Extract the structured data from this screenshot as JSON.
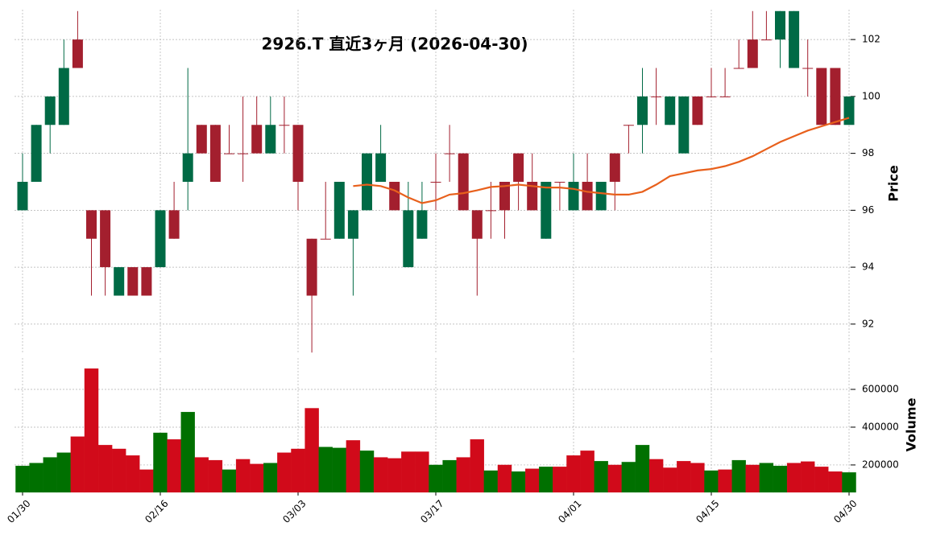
{
  "chart_data": {
    "type": "candlestick",
    "title": "2926.T  直近3ヶ月  (2026-04-30)",
    "categories": [
      "01/30",
      null,
      null,
      null,
      null,
      null,
      null,
      null,
      null,
      null,
      "02/16",
      null,
      null,
      null,
      null,
      null,
      null,
      null,
      null,
      null,
      "03/03",
      null,
      null,
      null,
      null,
      null,
      null,
      null,
      null,
      null,
      "03/17",
      null,
      null,
      null,
      null,
      null,
      null,
      null,
      null,
      null,
      "04/01",
      null,
      null,
      null,
      null,
      null,
      null,
      null,
      null,
      null,
      "04/15",
      null,
      null,
      null,
      null,
      null,
      null,
      null,
      null,
      null,
      "04/30"
    ],
    "open": [
      96,
      97,
      99,
      99,
      102,
      96,
      96,
      93,
      94,
      94,
      94,
      96,
      97,
      99,
      99,
      98,
      98,
      99,
      98,
      99,
      99,
      95,
      95,
      95,
      95,
      96,
      97,
      97,
      94,
      95,
      97,
      98,
      98,
      96,
      96,
      97,
      98,
      97,
      95,
      97,
      96,
      97,
      96,
      98,
      99,
      99,
      100,
      99,
      98,
      100,
      100,
      100,
      101,
      102,
      102,
      102,
      101,
      101,
      101,
      101,
      99
    ],
    "high": [
      98,
      99,
      100,
      102,
      103,
      96,
      96,
      94,
      94,
      94,
      96,
      97,
      101,
      99,
      99,
      99,
      100,
      100,
      100,
      100,
      99,
      95,
      97,
      97,
      96,
      98,
      99,
      97,
      97,
      97,
      98,
      99,
      98,
      96,
      97,
      97,
      98,
      98,
      97,
      97,
      98,
      98,
      97,
      98,
      99,
      101,
      101,
      100,
      100,
      100,
      101,
      101,
      102,
      103,
      103,
      103,
      103,
      102,
      101,
      101,
      100
    ],
    "low": [
      96,
      97,
      98,
      99,
      101,
      93,
      93,
      93,
      93,
      93,
      94,
      95,
      96,
      98,
      97,
      98,
      97,
      98,
      98,
      98,
      96,
      91,
      95,
      95,
      93,
      96,
      97,
      96,
      94,
      95,
      96,
      97,
      96,
      93,
      95,
      95,
      96,
      96,
      95,
      96,
      96,
      96,
      96,
      96,
      98,
      98,
      99,
      99,
      98,
      99,
      100,
      100,
      101,
      101,
      102,
      101,
      101,
      100,
      99,
      99,
      99
    ],
    "close": [
      97,
      99,
      100,
      101,
      101,
      95,
      94,
      94,
      93,
      93,
      96,
      95,
      98,
      98,
      97,
      98,
      98,
      98,
      99,
      99,
      97,
      93,
      95,
      97,
      96,
      98,
      98,
      96,
      96,
      96,
      97,
      98,
      96,
      95,
      96,
      96,
      97,
      96,
      97,
      97,
      97,
      96,
      97,
      97,
      99,
      100,
      100,
      100,
      100,
      99,
      100,
      100,
      101,
      101,
      102,
      103,
      103,
      101,
      99,
      99,
      100
    ],
    "volume": [
      195000,
      210000,
      240000,
      265000,
      350000,
      710000,
      305000,
      285000,
      250000,
      175000,
      370000,
      335000,
      480000,
      240000,
      225000,
      175000,
      230000,
      205000,
      210000,
      265000,
      285000,
      500000,
      295000,
      290000,
      330000,
      275000,
      240000,
      235000,
      270000,
      270000,
      200000,
      225000,
      240000,
      335000,
      170000,
      200000,
      165000,
      180000,
      190000,
      190000,
      250000,
      275000,
      220000,
      200000,
      215000,
      305000,
      230000,
      185000,
      220000,
      210000,
      170000,
      175000,
      225000,
      200000,
      210000,
      195000,
      210000,
      218000,
      190000,
      165000,
      160000
    ],
    "moving_average": {
      "color": "#e8601c",
      "values": [
        null,
        null,
        null,
        null,
        null,
        null,
        null,
        null,
        null,
        null,
        null,
        null,
        null,
        null,
        null,
        null,
        null,
        null,
        null,
        null,
        null,
        null,
        null,
        null,
        96.85,
        96.9,
        96.85,
        96.7,
        96.45,
        96.25,
        96.35,
        96.55,
        96.6,
        96.7,
        96.82,
        96.85,
        96.9,
        96.85,
        96.8,
        96.8,
        96.75,
        96.65,
        96.6,
        96.55,
        96.55,
        96.65,
        96.9,
        97.2,
        97.3,
        97.4,
        97.45,
        97.55,
        97.7,
        97.9,
        98.15,
        98.4,
        98.6,
        98.8,
        98.95,
        99.1,
        99.25
      ]
    },
    "up_color": "#006a45",
    "down_color": "#a31f2e",
    "volume_up_color": "#007000",
    "volume_down_color": "#d10a1a",
    "ylabel": "Price",
    "ylim": [
      90.95,
      103.05
    ],
    "yticks": [
      92,
      94,
      96,
      98,
      100,
      102
    ],
    "volume_label": "Volume",
    "volume_ylim": [
      55000,
      766000
    ],
    "volume_yticks": [
      200000,
      400000,
      600000
    ],
    "grid": true
  }
}
